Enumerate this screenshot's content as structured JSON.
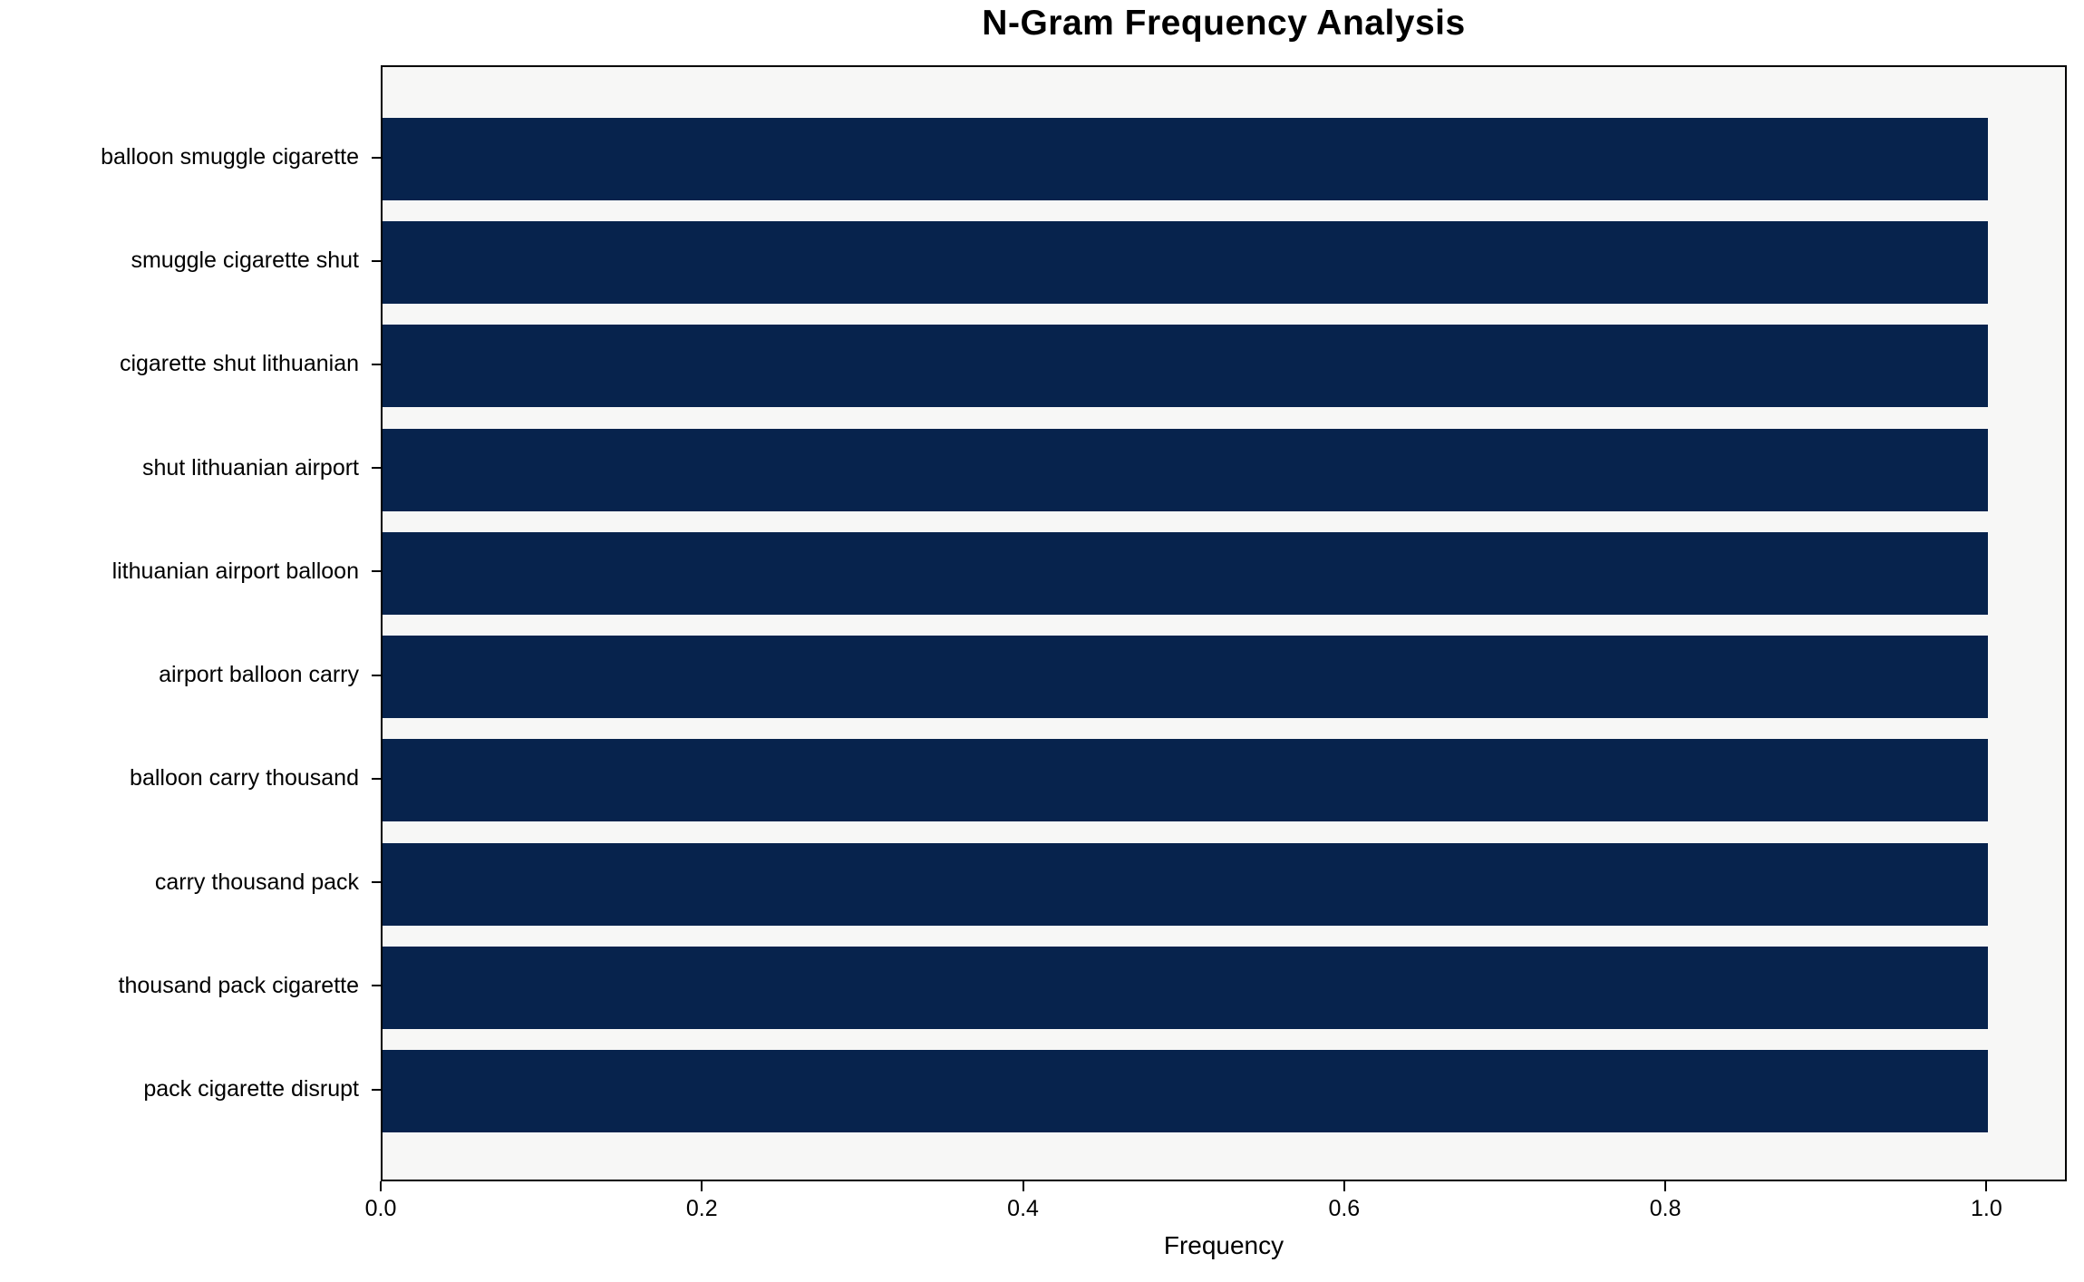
{
  "chart_data": {
    "type": "bar",
    "orientation": "horizontal",
    "title": "N-Gram Frequency Analysis",
    "xlabel": "Frequency",
    "ylabel": "",
    "categories": [
      "balloon smuggle cigarette",
      "smuggle cigarette shut",
      "cigarette shut lithuanian",
      "shut lithuanian airport",
      "lithuanian airport balloon",
      "airport balloon carry",
      "balloon carry thousand",
      "carry thousand pack",
      "thousand pack cigarette",
      "pack cigarette disrupt"
    ],
    "values": [
      1.0,
      1.0,
      1.0,
      1.0,
      1.0,
      1.0,
      1.0,
      1.0,
      1.0,
      1.0
    ],
    "xlim": [
      0,
      1.05
    ],
    "xticks": [
      {
        "value": 0.0,
        "label": "0.0"
      },
      {
        "value": 0.2,
        "label": "0.2"
      },
      {
        "value": 0.4,
        "label": "0.4"
      },
      {
        "value": 0.6,
        "label": "0.6"
      },
      {
        "value": 0.8,
        "label": "0.8"
      },
      {
        "value": 1.0,
        "label": "1.0"
      }
    ],
    "grid": false,
    "legend": null,
    "colors": {
      "bar": "#07234d",
      "plot_background": "#f7f7f6",
      "figure_background": "#ffffff",
      "spine": "#000000",
      "text": "#000000"
    }
  }
}
